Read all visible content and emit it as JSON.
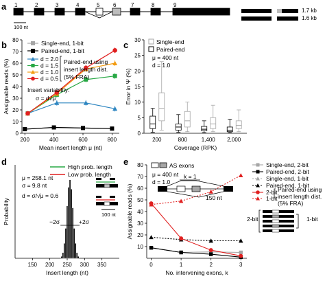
{
  "panels": {
    "a": {
      "label": "a",
      "exon_numbers": [
        "1",
        "2",
        "3",
        "4",
        "5",
        "6",
        "7",
        "8",
        "9"
      ],
      "scale_label": "100 nt",
      "isoforms": [
        "1.7 kb",
        "1.6 kb"
      ]
    },
    "b": {
      "label": "b",
      "legend": [
        "Single-end, 1-bit",
        "Paired-end, 1-bit"
      ],
      "insert_variability_title": "Insert variability:",
      "formula_sigma": "σ = d√μ",
      "note": "Paired-end using insert length dist. (5% FRA)"
    },
    "c": {
      "label": "c",
      "legend": [
        "Single-end",
        "Paired-end"
      ],
      "params": [
        "μ = 400 nt",
        "d = 1.0"
      ]
    },
    "d": {
      "label": "d",
      "params": [
        "μ = 258.1 nt",
        "σ = 9.8 nt",
        "d = σ/√μ = 0.6"
      ],
      "legend": [
        "High prob. length",
        "Low prob. length"
      ],
      "scale_label": "100 nt",
      "sigma_labels": [
        "−2σ",
        "+2σ"
      ]
    },
    "e": {
      "label": "e",
      "legend_box": "AS exons",
      "params": [
        "μ = 400 nt",
        "d = 1.0"
      ],
      "k_label": "k = 1",
      "nt_label": "150 nt",
      "right_legend": [
        "Single-end, 2-bit",
        "Paired-end, 2-bit",
        "Single-end, 1-bit",
        "Paired-end, 1-bit",
        "2-bit",
        "1-bit"
      ],
      "note": "Paired-end using insert length dist. (5% FRA)",
      "bit2_label": "2-bit",
      "bit1_label": "1-bit"
    }
  },
  "colors": {
    "gray": "#a6a6a6",
    "black": "#000000",
    "blue": "#2e86c1",
    "green": "#27a844",
    "orange": "#f39c12",
    "red": "#e02020",
    "pink": "#e8a0a0"
  },
  "chart_data": [
    {
      "id": "b",
      "type": "line",
      "title": "",
      "xlabel": "Mean insert length μ (nt)",
      "ylabel": "Assignable reads (%)",
      "xlim": [
        180,
        850
      ],
      "ylim": [
        0,
        80
      ],
      "xticks": [
        200,
        400,
        600,
        800
      ],
      "yticks": [
        0,
        10,
        20,
        30,
        40,
        50,
        60,
        70,
        80
      ],
      "series": [
        {
          "name": "Single-end, 1-bit",
          "color": "gray",
          "marker": "square",
          "x": [
            200,
            400,
            600,
            800
          ],
          "y": [
            3.5,
            5,
            4.5,
            4
          ]
        },
        {
          "name": "Paired-end, 1-bit",
          "color": "black",
          "marker": "square",
          "x": [
            200,
            400,
            600,
            800
          ],
          "y": [
            3.5,
            5,
            4.5,
            4
          ]
        },
        {
          "name": "d = 2.0",
          "color": "blue",
          "marker": "triangle",
          "x": [
            220,
            420,
            620,
            820
          ],
          "y": [
            17,
            26,
            26,
            21
          ]
        },
        {
          "name": "d = 1.5",
          "color": "green",
          "marker": "square",
          "x": [
            220,
            420,
            620,
            820
          ],
          "y": [
            17,
            33,
            46,
            49
          ]
        },
        {
          "name": "d = 1.0",
          "color": "orange",
          "marker": "triangle",
          "x": [
            220,
            420,
            620,
            820
          ],
          "y": [
            17,
            34,
            55,
            60
          ]
        },
        {
          "name": "d = 0.5",
          "color": "red",
          "marker": "circle",
          "x": [
            220,
            420,
            620,
            820
          ],
          "y": [
            17,
            35,
            56,
            71
          ]
        }
      ]
    },
    {
      "id": "c",
      "type": "box",
      "title": "",
      "xlabel": "Coverage (RPK)",
      "ylabel": "Error in Ψ (%)",
      "ylim": [
        0,
        30
      ],
      "yticks": [
        0,
        5,
        10,
        15,
        20,
        25,
        30
      ],
      "categories": [
        "200",
        "800",
        "1,400",
        "2,000"
      ],
      "series": [
        {
          "name": "Paired-end",
          "boxes": [
            {
              "min": 0.3,
              "q1": 1.5,
              "med": 3,
              "q3": 5.5,
              "max": 8
            },
            {
              "min": 0.3,
              "q1": 1,
              "med": 2,
              "q3": 3,
              "max": 6
            },
            {
              "min": 0.2,
              "q1": 0.8,
              "med": 1.3,
              "q3": 2.2,
              "max": 4
            },
            {
              "min": 0.2,
              "q1": 0.5,
              "med": 1,
              "q3": 2,
              "max": 4.5
            }
          ]
        },
        {
          "name": "Single-end",
          "boxes": [
            {
              "min": 1,
              "q1": 4,
              "med": 8,
              "q3": 13,
              "max": 23
            },
            {
              "min": 0.5,
              "q1": 2,
              "med": 4,
              "q3": 7,
              "max": 10
            },
            {
              "min": 0.5,
              "q1": 1.5,
              "med": 3,
              "q3": 5,
              "max": 9
            },
            {
              "min": 0.5,
              "q1": 1.5,
              "med": 2.5,
              "q3": 4,
              "max": 7.5
            }
          ]
        }
      ]
    },
    {
      "id": "d",
      "type": "bar",
      "title": "",
      "xlabel": "Insert length (nt)",
      "ylabel": "Probability",
      "xlim": [
        100,
        400
      ],
      "ylim": [
        0,
        0.05
      ],
      "xticks": [
        150,
        200,
        250,
        300,
        350
      ],
      "bin_width": 4,
      "x": [
        234,
        238,
        242,
        246,
        250,
        254,
        258,
        262,
        266,
        270,
        274,
        278,
        282
      ],
      "values": [
        0.001,
        0.003,
        0.008,
        0.016,
        0.028,
        0.038,
        0.042,
        0.037,
        0.027,
        0.016,
        0.008,
        0.003,
        0.001
      ]
    },
    {
      "id": "e",
      "type": "line",
      "title": "",
      "xlabel": "No. intervening exons, k",
      "ylabel": "Assignable reads (%)",
      "xlim": [
        -0.15,
        3.2
      ],
      "ylim": [
        0,
        80
      ],
      "xticks": [
        0,
        1,
        2,
        3
      ],
      "yticks": [
        10,
        20,
        30,
        40,
        50,
        60,
        70,
        80
      ],
      "series": [
        {
          "name": "Single-end, 2-bit",
          "color": "gray",
          "marker": "square",
          "dash": false,
          "x": [
            0,
            1,
            2,
            3
          ],
          "y": [
            9,
            5,
            5.5,
            5
          ]
        },
        {
          "name": "Paired-end, 2-bit",
          "color": "black",
          "marker": "square",
          "dash": false,
          "x": [
            0,
            1,
            2,
            3
          ],
          "y": [
            9,
            5,
            3.5,
            1
          ]
        },
        {
          "name": "Single-end, 1-bit",
          "color": "gray",
          "marker": "triangle",
          "dash": true,
          "x": [
            0,
            1,
            2,
            3
          ],
          "y": [
            18,
            16,
            15,
            15
          ]
        },
        {
          "name": "Paired-end, 1-bit",
          "color": "black",
          "marker": "triangle",
          "dash": true,
          "x": [
            0,
            1,
            2,
            3
          ],
          "y": [
            18,
            16,
            15,
            15
          ]
        },
        {
          "name": "2-bit",
          "color": "red",
          "marker": "circle",
          "dash": false,
          "x": [
            0,
            1,
            2,
            3
          ],
          "y": [
            47,
            17,
            7,
            2
          ]
        },
        {
          "name": "1-bit",
          "color": "red",
          "marker": "triangle",
          "dash": true,
          "x": [
            0,
            1,
            2,
            3
          ],
          "y": [
            46,
            49,
            57,
            71
          ]
        }
      ]
    }
  ]
}
